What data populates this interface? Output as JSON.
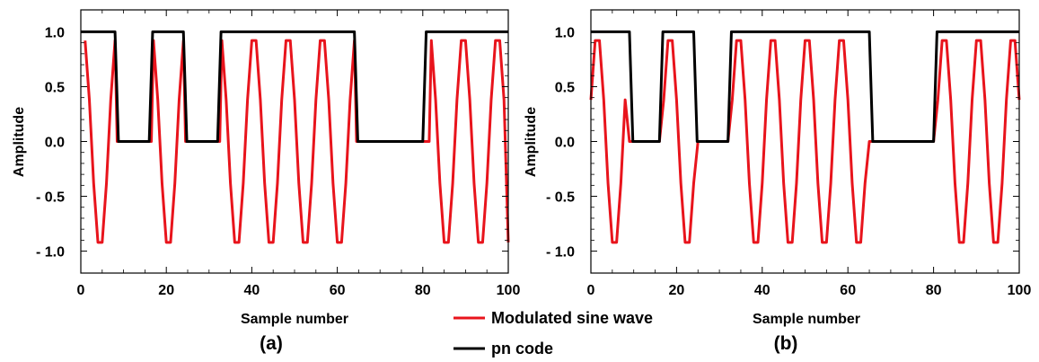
{
  "legend": {
    "items": [
      {
        "label": "Modulated sine wave",
        "color": "#e8141c"
      },
      {
        "label": "pn code",
        "color": "#000000"
      }
    ]
  },
  "chart_data": [
    {
      "type": "line",
      "panel_label": "(a)",
      "xlabel": "Sample number",
      "ylabel": "Amplitude",
      "xlim": [
        0,
        100
      ],
      "ylim": [
        -1.2,
        1.2
      ],
      "xticks": [
        "0",
        "20",
        "40",
        "60",
        "80",
        "100"
      ],
      "yticks": [
        {
          "value": 1.0,
          "label": "1.0"
        },
        {
          "value": 0.5,
          "label": "0.5"
        },
        {
          "value": 0.0,
          "label": "0.0"
        },
        {
          "value": -0.5,
          "label": "- 0.5"
        },
        {
          "value": -1.0,
          "label": "- 1.0"
        }
      ],
      "series": [
        {
          "name": "Modulated sine wave",
          "color": "#e8141c",
          "x": [
            1,
            2,
            3,
            4,
            5,
            6,
            7,
            8,
            8.5,
            16,
            16.5,
            17,
            18,
            19,
            20,
            21,
            22,
            23,
            24,
            24.5,
            32,
            32.5,
            33,
            34,
            35,
            36,
            37,
            38,
            39,
            40,
            41,
            42,
            43,
            44,
            45,
            46,
            47,
            48,
            49,
            50,
            51,
            52,
            53,
            54,
            55,
            56,
            57,
            58,
            59,
            60,
            61,
            62,
            63,
            64,
            64.5,
            81,
            81.5,
            82,
            83,
            84,
            85,
            86,
            87,
            88,
            89,
            90,
            91,
            92,
            93,
            94,
            95,
            96,
            97,
            98,
            99,
            100
          ],
          "y": [
            0.92,
            0.38,
            -0.38,
            -0.92,
            -0.92,
            -0.38,
            0.38,
            0.92,
            0,
            0,
            0,
            0.92,
            0.38,
            -0.38,
            -0.92,
            -0.92,
            -0.38,
            0.38,
            0.92,
            0,
            0,
            0,
            0.92,
            0.38,
            -0.38,
            -0.92,
            -0.92,
            -0.38,
            0.38,
            0.92,
            0.92,
            0.38,
            -0.38,
            -0.92,
            -0.92,
            -0.38,
            0.38,
            0.92,
            0.92,
            0.38,
            -0.38,
            -0.92,
            -0.92,
            -0.38,
            0.38,
            0.92,
            0.92,
            0.38,
            -0.38,
            -0.92,
            -0.92,
            -0.38,
            0.38,
            0.92,
            0,
            0,
            0,
            0.92,
            0.38,
            -0.38,
            -0.92,
            -0.92,
            -0.38,
            0.38,
            0.92,
            0.92,
            0.38,
            -0.38,
            -0.92,
            -0.92,
            -0.38,
            0.38,
            0.92,
            0.92,
            0.38,
            -0.92
          ]
        },
        {
          "name": "pn code",
          "color": "#000000",
          "x": [
            0,
            8,
            8.8,
            16,
            16.8,
            24,
            24.8,
            32,
            32.8,
            64,
            64.8,
            80,
            80.8,
            100
          ],
          "y": [
            1,
            1,
            0,
            0,
            1,
            1,
            0,
            0,
            1,
            1,
            0,
            0,
            1,
            1
          ]
        }
      ]
    },
    {
      "type": "line",
      "panel_label": "(b)",
      "xlabel": "Sample number",
      "ylabel": "Amplitude",
      "xlim": [
        0,
        100
      ],
      "ylim": [
        -1.2,
        1.2
      ],
      "xticks": [
        "0",
        "20",
        "40",
        "60",
        "80",
        "100"
      ],
      "yticks": [
        {
          "value": 1.0,
          "label": "1.0"
        },
        {
          "value": 0.5,
          "label": "0.5"
        },
        {
          "value": 0.0,
          "label": "0.0"
        },
        {
          "value": -0.5,
          "label": "- 0.5"
        },
        {
          "value": -1.0,
          "label": "- 1.0"
        }
      ],
      "series": [
        {
          "name": "Modulated sine wave",
          "color": "#e8141c",
          "x": [
            0,
            1,
            2,
            3,
            4,
            5,
            6,
            7,
            8,
            9,
            10,
            16,
            17,
            18,
            19,
            20,
            21,
            22,
            23,
            24,
            25,
            26,
            32,
            33,
            34,
            35,
            36,
            37,
            38,
            39,
            40,
            41,
            42,
            43,
            44,
            45,
            46,
            47,
            48,
            49,
            50,
            51,
            52,
            53,
            54,
            55,
            56,
            57,
            58,
            59,
            60,
            61,
            62,
            63,
            64,
            65,
            80,
            81,
            82,
            83,
            84,
            85,
            86,
            87,
            88,
            89,
            90,
            91,
            92,
            93,
            94,
            95,
            96,
            97,
            98,
            99,
            100
          ],
          "y": [
            0.38,
            0.92,
            0.92,
            0.38,
            -0.38,
            -0.92,
            -0.92,
            -0.38,
            0.38,
            0,
            0,
            0,
            0.38,
            0.92,
            0.92,
            0.38,
            -0.38,
            -0.92,
            -0.92,
            -0.38,
            0,
            0,
            0,
            0.38,
            0.92,
            0.92,
            0.38,
            -0.38,
            -0.92,
            -0.92,
            -0.38,
            0.38,
            0.92,
            0.92,
            0.38,
            -0.38,
            -0.92,
            -0.92,
            -0.38,
            0.38,
            0.92,
            0.92,
            0.38,
            -0.38,
            -0.92,
            -0.92,
            -0.38,
            0.38,
            0.92,
            0.92,
            0.38,
            -0.38,
            -0.92,
            -0.92,
            -0.38,
            0,
            0,
            0.38,
            0.92,
            0.92,
            0.38,
            -0.38,
            -0.92,
            -0.92,
            -0.38,
            0.38,
            0.92,
            0.92,
            0.38,
            -0.38,
            -0.92,
            -0.92,
            -0.38,
            0.38,
            0.92,
            0.92,
            0.38
          ]
        },
        {
          "name": "pn code",
          "color": "#000000",
          "x": [
            0,
            9,
            9.8,
            16,
            16.8,
            24,
            24.8,
            32,
            32.8,
            65,
            65.8,
            80,
            80.8,
            100
          ],
          "y": [
            1,
            1,
            0,
            0,
            1,
            1,
            0,
            0,
            1,
            1,
            0,
            0,
            1,
            1
          ]
        }
      ]
    }
  ]
}
